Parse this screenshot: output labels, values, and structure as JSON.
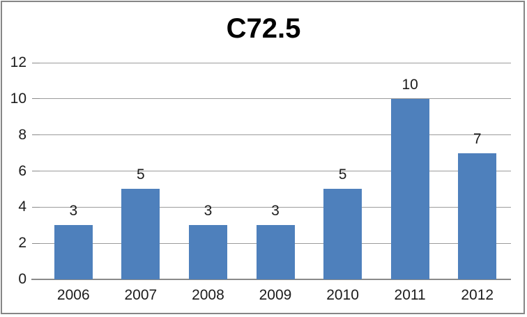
{
  "chart_data": {
    "type": "bar",
    "title": "C72.5",
    "categories": [
      "2006",
      "2007",
      "2008",
      "2009",
      "2010",
      "2011",
      "2012"
    ],
    "values": [
      3,
      5,
      3,
      3,
      5,
      10,
      7
    ],
    "data_labels": [
      "3",
      "5",
      "3",
      "3",
      "5",
      "10",
      "7"
    ],
    "xlabel": "",
    "ylabel": "",
    "ylim": [
      0,
      12
    ],
    "yticks": [
      0,
      2,
      4,
      6,
      8,
      10,
      12
    ],
    "grid": "horizontal",
    "legend": "none",
    "series_name": ""
  },
  "colors": {
    "bar": "#4E80BC",
    "gridline": "#9C9C9C",
    "axis_line": "#8A8A8A",
    "border": "#868686",
    "text": "#1C1C1C",
    "title_text": "#000000",
    "background": "#FFFFFF"
  }
}
